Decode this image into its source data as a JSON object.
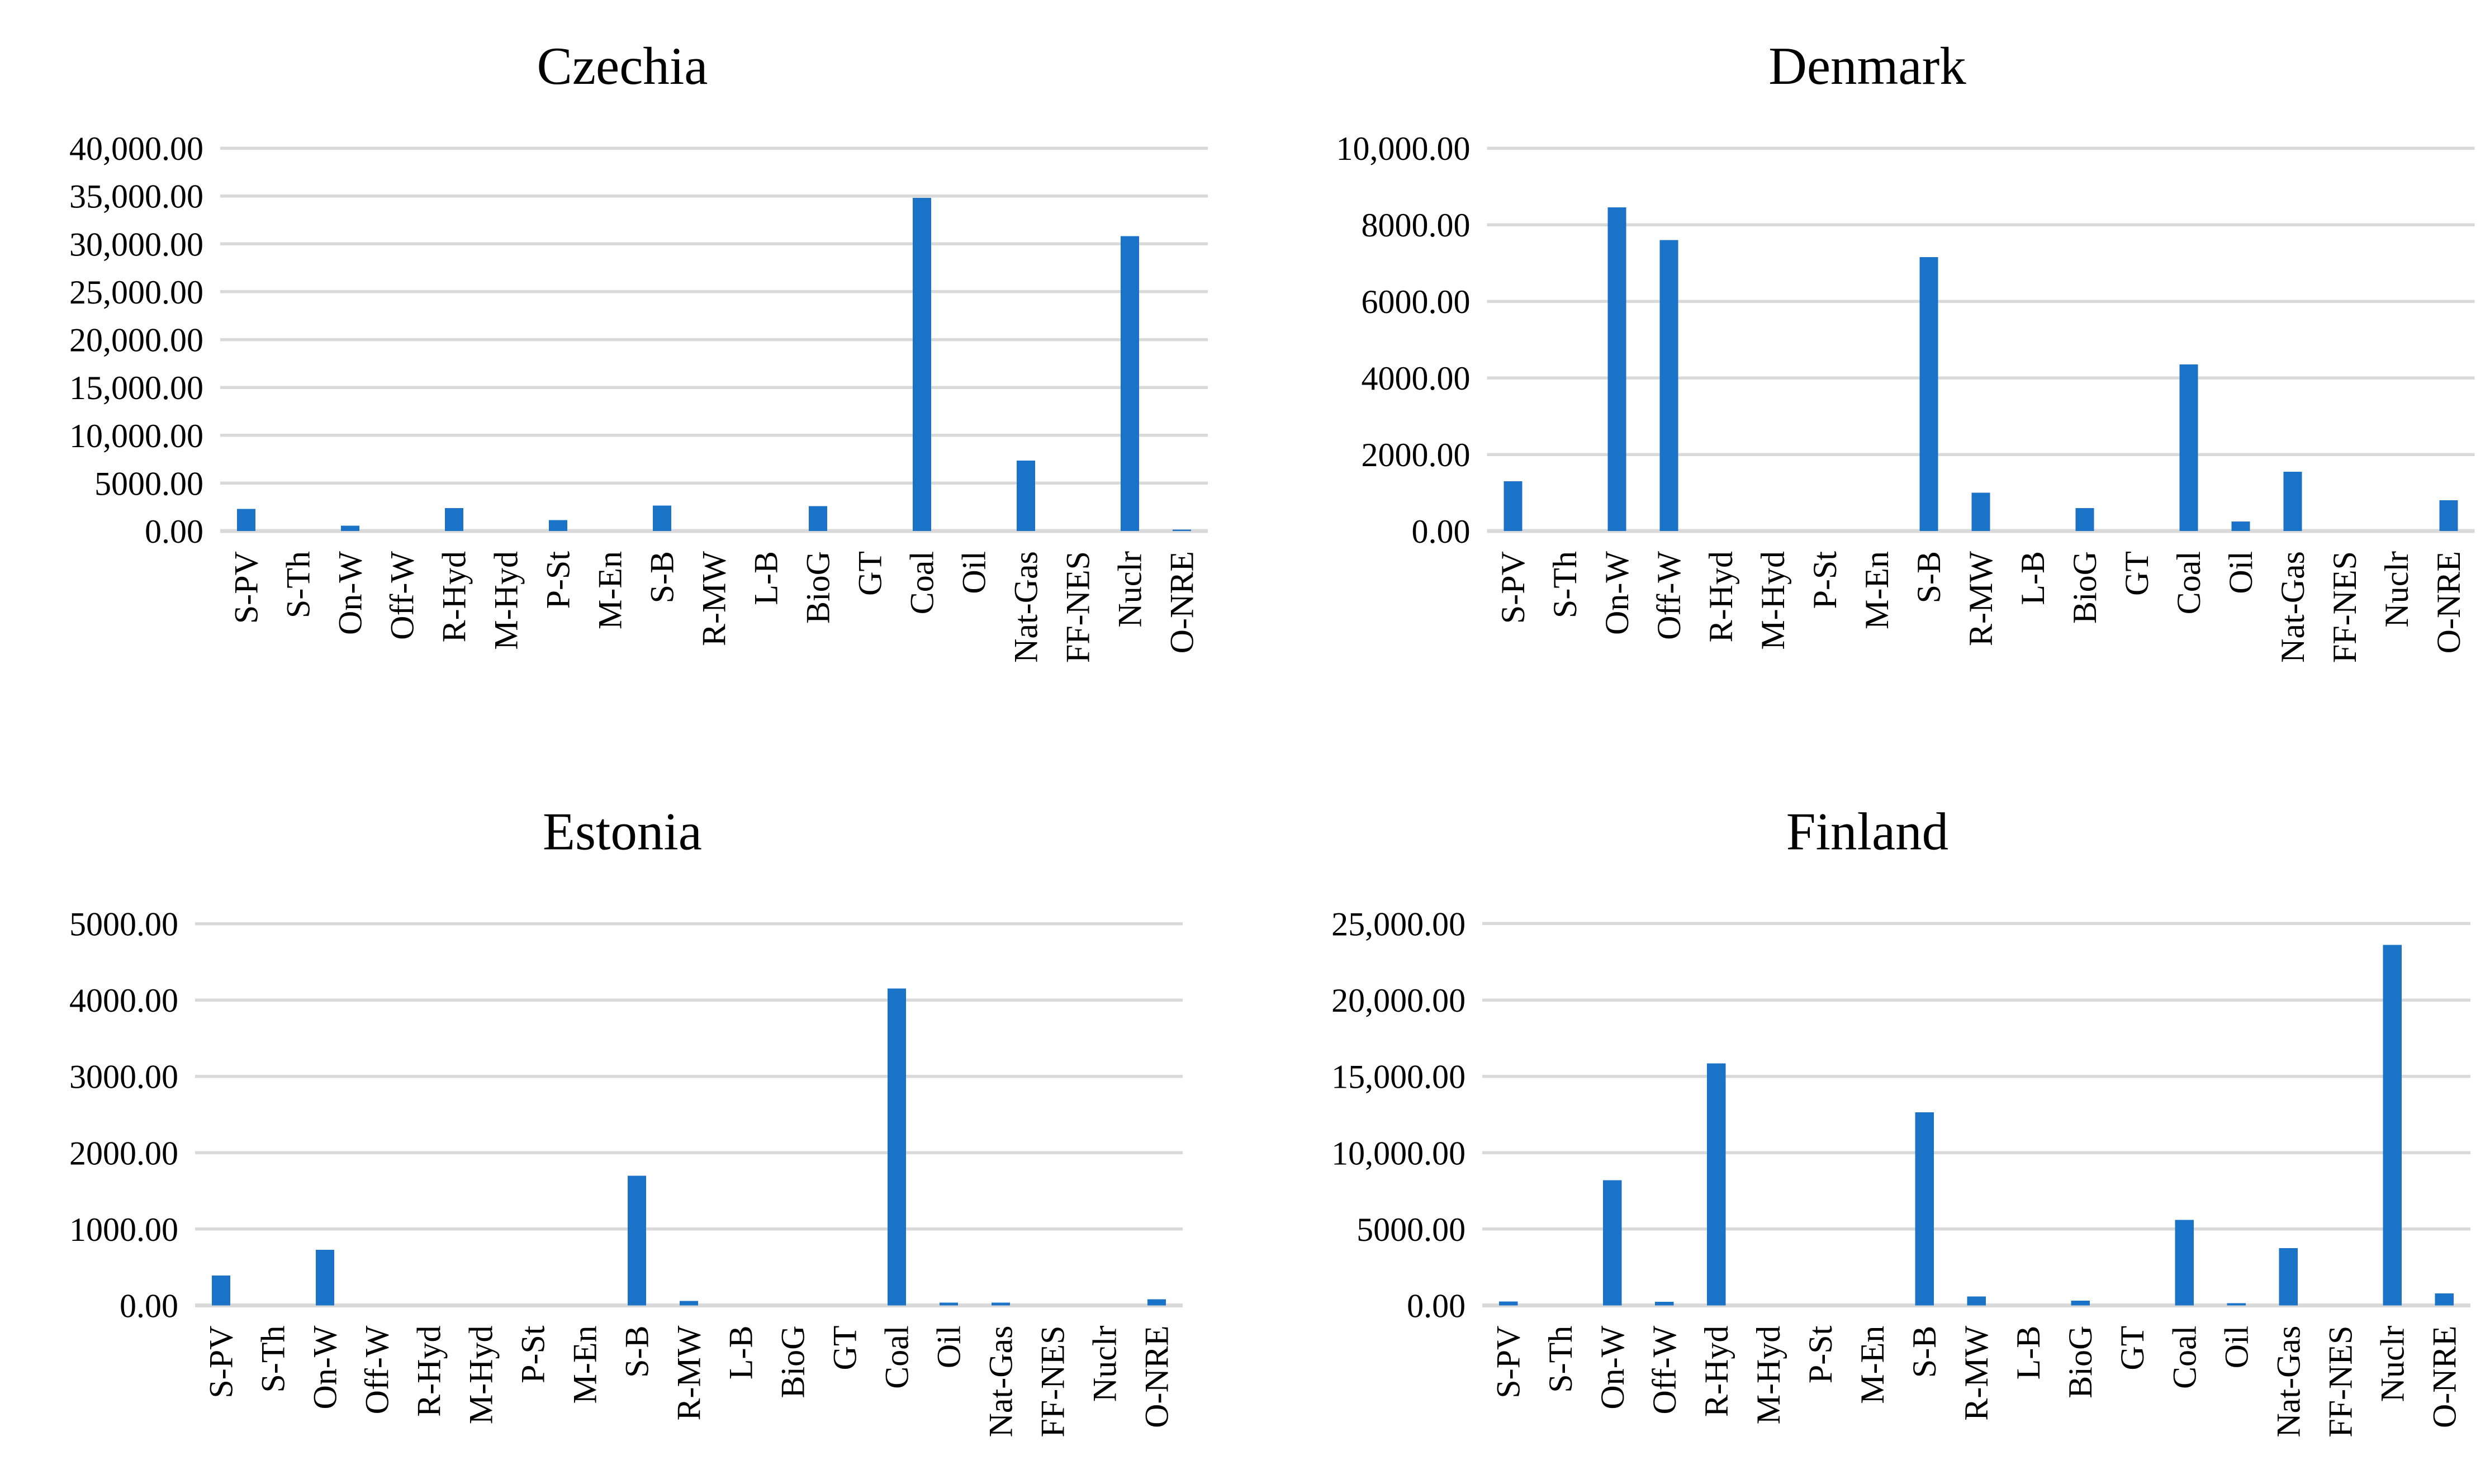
{
  "figure": {
    "background": "#FFFFFF",
    "layout": "2x2 grid of bar charts",
    "legend": "none"
  },
  "colors": {
    "bar": "#1B73C8",
    "gridline": "#D9D9D9",
    "text": "#000000"
  },
  "chart_data": [
    {
      "type": "bar",
      "title": "Czechia",
      "grid": true,
      "ylim": [
        0,
        40000
      ],
      "ytick_step": 5000,
      "ytick_labels": [
        "0.00",
        "5000.00",
        "10,000.00",
        "15,000.00",
        "20,000.00",
        "25,000.00",
        "30,000.00",
        "35,000.00",
        "40,000.00"
      ],
      "categories": [
        "S-PV",
        "S-Th",
        "On-W",
        "Off-W",
        "R-Hyd",
        "M-Hyd",
        "P-St",
        "M-En",
        "S-B",
        "R-MW",
        "L-B",
        "BioG",
        "GT",
        "Coal",
        "Oil",
        "Nat-Gas",
        "FF-NES",
        "Nuclr",
        "O-NRE"
      ],
      "values": [
        2300,
        0,
        550,
        0,
        2400,
        0,
        1150,
        0,
        2650,
        0,
        0,
        2600,
        0,
        34800,
        0,
        7350,
        0,
        30800,
        150
      ]
    },
    {
      "type": "bar",
      "title": "Denmark",
      "grid": true,
      "ylim": [
        0,
        10000
      ],
      "ytick_step": 2000,
      "ytick_labels": [
        "0.00",
        "2000.00",
        "4000.00",
        "6000.00",
        "8000.00",
        "10,000.00"
      ],
      "categories": [
        "S-PV",
        "S-Th",
        "On-W",
        "Off-W",
        "R-Hyd",
        "M-Hyd",
        "P-St",
        "M-En",
        "S-B",
        "R-MW",
        "L-B",
        "BioG",
        "GT",
        "Coal",
        "Oil",
        "Nat-Gas",
        "FF-NES",
        "Nuclr",
        "O-NRE"
      ],
      "values": [
        1300,
        0,
        8450,
        7600,
        0,
        0,
        0,
        0,
        7150,
        1000,
        0,
        600,
        0,
        4350,
        250,
        1550,
        0,
        0,
        800
      ]
    },
    {
      "type": "bar",
      "title": "Estonia",
      "grid": true,
      "ylim": [
        0,
        5000
      ],
      "ytick_step": 1000,
      "ytick_labels": [
        "0.00",
        "1000.00",
        "2000.00",
        "3000.00",
        "4000.00",
        "5000.00"
      ],
      "categories": [
        "S-PV",
        "S-Th",
        "On-W",
        "Off-W",
        "R-Hyd",
        "M-Hyd",
        "P-St",
        "M-En",
        "S-B",
        "R-MW",
        "L-B",
        "BioG",
        "GT",
        "Coal",
        "Oil",
        "Nat-Gas",
        "FF-NES",
        "Nuclr",
        "O-NRE"
      ],
      "values": [
        390,
        0,
        730,
        0,
        0,
        0,
        0,
        0,
        1700,
        60,
        0,
        0,
        0,
        4150,
        35,
        35,
        0,
        0,
        80
      ]
    },
    {
      "type": "bar",
      "title": "Finland",
      "grid": true,
      "ylim": [
        0,
        25000
      ],
      "ytick_step": 5000,
      "ytick_labels": [
        "0.00",
        "5000.00",
        "10,000.00",
        "15,000.00",
        "20,000.00",
        "25,000.00"
      ],
      "categories": [
        "S-PV",
        "S-Th",
        "On-W",
        "Off-W",
        "R-Hyd",
        "M-Hyd",
        "P-St",
        "M-En",
        "S-B",
        "R-MW",
        "L-B",
        "BioG",
        "GT",
        "Coal",
        "Oil",
        "Nat-Gas",
        "FF-NES",
        "Nuclr",
        "O-NRE"
      ],
      "values": [
        270,
        0,
        8200,
        250,
        15850,
        0,
        0,
        0,
        12650,
        600,
        0,
        320,
        0,
        5600,
        150,
        3750,
        0,
        23600,
        800
      ]
    }
  ]
}
